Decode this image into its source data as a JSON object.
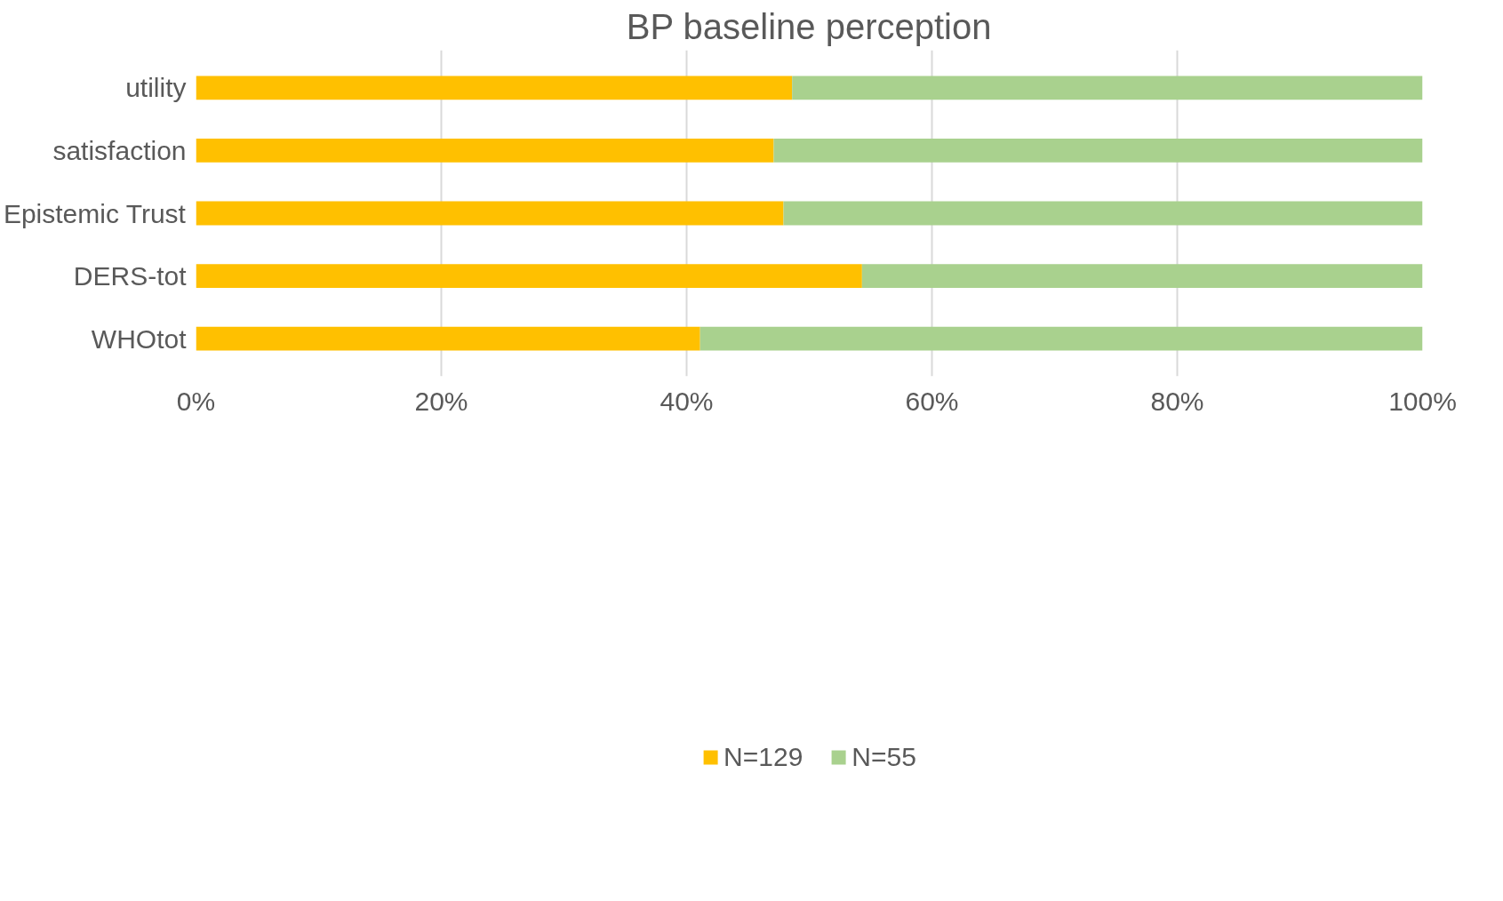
{
  "chart_data": {
    "type": "bar",
    "orientation": "horizontal",
    "stacked": true,
    "title": "BP baseline perception",
    "categories": [
      "utility",
      "satisfaction",
      "Epistemic Trust",
      "DERS-tot",
      "WHOtot"
    ],
    "series": [
      {
        "name": "N=129",
        "color": "#ffc000",
        "values": [
          48.6,
          47.1,
          47.9,
          54.3,
          41.1
        ]
      },
      {
        "name": "N=55",
        "color": "#a9d18e",
        "values": [
          51.4,
          52.9,
          52.1,
          45.7,
          58.9
        ]
      }
    ],
    "xlim": [
      0,
      100
    ],
    "xticks": [
      {
        "value": 0,
        "label": "0%"
      },
      {
        "value": 20,
        "label": "20%"
      },
      {
        "value": 40,
        "label": "40%"
      },
      {
        "value": 60,
        "label": "60%"
      },
      {
        "value": 80,
        "label": "80%"
      },
      {
        "value": 100,
        "label": "100%"
      }
    ],
    "grid": "x",
    "legend": "bottom"
  }
}
